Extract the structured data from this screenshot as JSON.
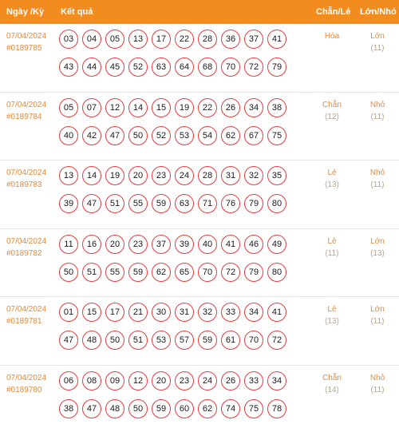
{
  "header": {
    "date_label": "Ngày /Kỳ",
    "result_label": "Kết quả",
    "parity_label": "Chẵn/Lẻ",
    "size_label": "Lớn/Nhỏ"
  },
  "colors": {
    "header_bg": "#f28c1e",
    "ball_border": "#e63b3b",
    "accent_text": "#e38a3e"
  },
  "rows": [
    {
      "date": "07/04/2024",
      "draw": "#0189785",
      "numbers": [
        "03",
        "04",
        "05",
        "13",
        "17",
        "22",
        "28",
        "36",
        "37",
        "41",
        "43",
        "44",
        "45",
        "52",
        "63",
        "64",
        "68",
        "70",
        "72",
        "79"
      ],
      "parity": "Hòa",
      "parity_count": "",
      "size": "Lớn",
      "size_count": "(11)"
    },
    {
      "date": "07/04/2024",
      "draw": "#0189784",
      "numbers": [
        "05",
        "07",
        "12",
        "14",
        "15",
        "19",
        "22",
        "26",
        "34",
        "38",
        "40",
        "42",
        "47",
        "50",
        "52",
        "53",
        "54",
        "62",
        "67",
        "75"
      ],
      "parity": "Chẵn",
      "parity_count": "(12)",
      "size": "Nhỏ",
      "size_count": "(11)"
    },
    {
      "date": "07/04/2024",
      "draw": "#0189783",
      "numbers": [
        "13",
        "14",
        "19",
        "20",
        "23",
        "24",
        "28",
        "31",
        "32",
        "35",
        "39",
        "47",
        "51",
        "55",
        "59",
        "63",
        "71",
        "76",
        "79",
        "80"
      ],
      "parity": "Lẻ",
      "parity_count": "(13)",
      "size": "Nhỏ",
      "size_count": "(11)"
    },
    {
      "date": "07/04/2024",
      "draw": "#0189782",
      "numbers": [
        "11",
        "16",
        "20",
        "23",
        "37",
        "39",
        "40",
        "41",
        "46",
        "49",
        "50",
        "51",
        "55",
        "59",
        "62",
        "65",
        "70",
        "72",
        "79",
        "80"
      ],
      "parity": "Lẻ",
      "parity_count": "(11)",
      "size": "Lớn",
      "size_count": "(13)"
    },
    {
      "date": "07/04/2024",
      "draw": "#0189781",
      "numbers": [
        "01",
        "15",
        "17",
        "21",
        "30",
        "31",
        "32",
        "33",
        "34",
        "41",
        "47",
        "48",
        "50",
        "51",
        "53",
        "57",
        "59",
        "61",
        "70",
        "72"
      ],
      "parity": "Lẻ",
      "parity_count": "(13)",
      "size": "Lớn",
      "size_count": "(11)"
    },
    {
      "date": "07/04/2024",
      "draw": "#0189780",
      "numbers": [
        "06",
        "08",
        "09",
        "12",
        "20",
        "23",
        "24",
        "26",
        "33",
        "34",
        "38",
        "47",
        "48",
        "50",
        "59",
        "60",
        "62",
        "74",
        "75",
        "78"
      ],
      "parity": "Chẵn",
      "parity_count": "(14)",
      "size": "Nhỏ",
      "size_count": "(11)"
    }
  ]
}
